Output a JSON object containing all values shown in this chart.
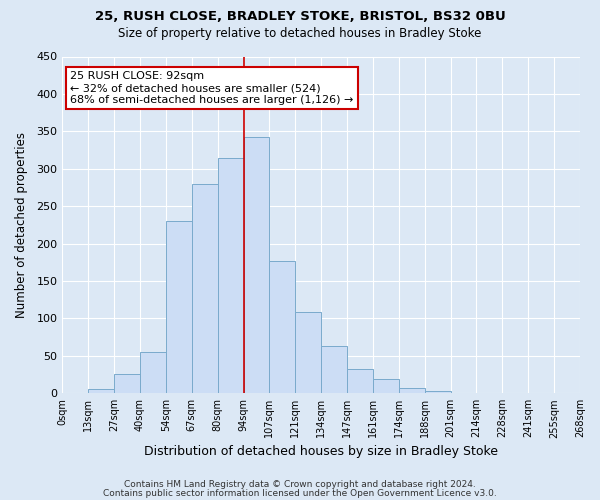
{
  "title1": "25, RUSH CLOSE, BRADLEY STOKE, BRISTOL, BS32 0BU",
  "title2": "Size of property relative to detached houses in Bradley Stoke",
  "xlabel": "Distribution of detached houses by size in Bradley Stoke",
  "ylabel": "Number of detached properties",
  "bin_labels": [
    "0sqm",
    "13sqm",
    "27sqm",
    "40sqm",
    "54sqm",
    "67sqm",
    "80sqm",
    "94sqm",
    "107sqm",
    "121sqm",
    "134sqm",
    "147sqm",
    "161sqm",
    "174sqm",
    "188sqm",
    "201sqm",
    "214sqm",
    "228sqm",
    "241sqm",
    "255sqm",
    "268sqm"
  ],
  "bin_values": [
    0,
    6,
    25,
    55,
    230,
    280,
    315,
    342,
    177,
    108,
    63,
    33,
    19,
    7,
    3,
    0,
    0,
    0,
    0,
    0
  ],
  "bar_color": "#ccddf5",
  "bar_edge_color": "#7aaacc",
  "vline_x_index": 7,
  "vline_color": "#cc0000",
  "annotation_line1": "25 RUSH CLOSE: 92sqm",
  "annotation_line2": "← 32% of detached houses are smaller (524)",
  "annotation_line3": "68% of semi-detached houses are larger (1,126) →",
  "annotation_box_edge_color": "#cc0000",
  "ylim": [
    0,
    450
  ],
  "yticks": [
    0,
    50,
    100,
    150,
    200,
    250,
    300,
    350,
    400,
    450
  ],
  "footer1": "Contains HM Land Registry data © Crown copyright and database right 2024.",
  "footer2": "Contains public sector information licensed under the Open Government Licence v3.0.",
  "background_color": "#dce8f5",
  "plot_background": "#dce8f5",
  "grid_color": "#ffffff",
  "title1_fontsize": 9.5,
  "title2_fontsize": 8.5
}
